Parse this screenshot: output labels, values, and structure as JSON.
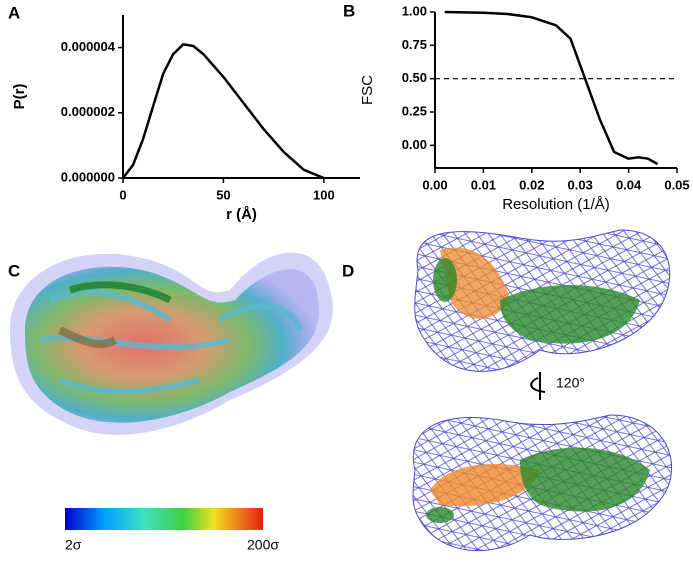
{
  "chart_data": [
    {
      "type": "line",
      "panel_label": "A",
      "x_label": "r (Å)",
      "y_label": "P(r)",
      "x": [
        0,
        5,
        10,
        15,
        20,
        25,
        30,
        35,
        40,
        50,
        60,
        70,
        80,
        90,
        100
      ],
      "values": [
        0,
        4e-07,
        1.2e-06,
        2.2e-06,
        3.2e-06,
        3.8e-06,
        4.1e-06,
        4.05e-06,
        3.8e-06,
        3.1e-06,
        2.3e-06,
        1.5e-06,
        8e-07,
        2.5e-07,
        0
      ],
      "color": "#000000",
      "xlim": [
        0,
        118
      ],
      "ylim": [
        0,
        5e-06
      ],
      "xticks": [
        0,
        50,
        100
      ],
      "yticks": [
        {
          "value": 0,
          "label": "0.000000"
        },
        {
          "value": 2e-06,
          "label": "0.000002"
        },
        {
          "value": 4e-06,
          "label": "0.000004"
        }
      ]
    },
    {
      "type": "line",
      "panel_label": "B",
      "x_label": "Resolution (1/Å)",
      "y_label": "FSC",
      "x": [
        0.002,
        0.01,
        0.015,
        0.02,
        0.025,
        0.028,
        0.03,
        0.032,
        0.034,
        0.037,
        0.04,
        0.042,
        0.044,
        0.046
      ],
      "values": [
        1.0,
        0.995,
        0.985,
        0.96,
        0.9,
        0.8,
        0.6,
        0.4,
        0.2,
        -0.05,
        -0.1,
        -0.09,
        -0.1,
        -0.14
      ],
      "color": "#000000",
      "threshold": 0.5,
      "xlim": [
        0,
        0.05
      ],
      "ylim": [
        -0.17,
        1.0
      ],
      "xticks": [
        {
          "value": 0,
          "label": "0.00"
        },
        {
          "value": 0.01,
          "label": "0.01"
        },
        {
          "value": 0.02,
          "label": "0.02"
        },
        {
          "value": 0.03,
          "label": "0.03"
        },
        {
          "value": 0.04,
          "label": "0.04"
        },
        {
          "value": 0.05,
          "label": "0.05"
        }
      ],
      "yticks": [
        {
          "value": 0,
          "label": "0.00"
        },
        {
          "value": 0.25,
          "label": "0.25"
        },
        {
          "value": 0.5,
          "label": "0.50"
        },
        {
          "value": 0.75,
          "label": "0.75"
        },
        {
          "value": 1,
          "label": "1.00"
        }
      ]
    }
  ],
  "panels": {
    "C": {
      "label": "C",
      "colorbar_min": "2σ",
      "colorbar_max": "200σ"
    },
    "D": {
      "label": "D",
      "rotation": "120°"
    }
  }
}
